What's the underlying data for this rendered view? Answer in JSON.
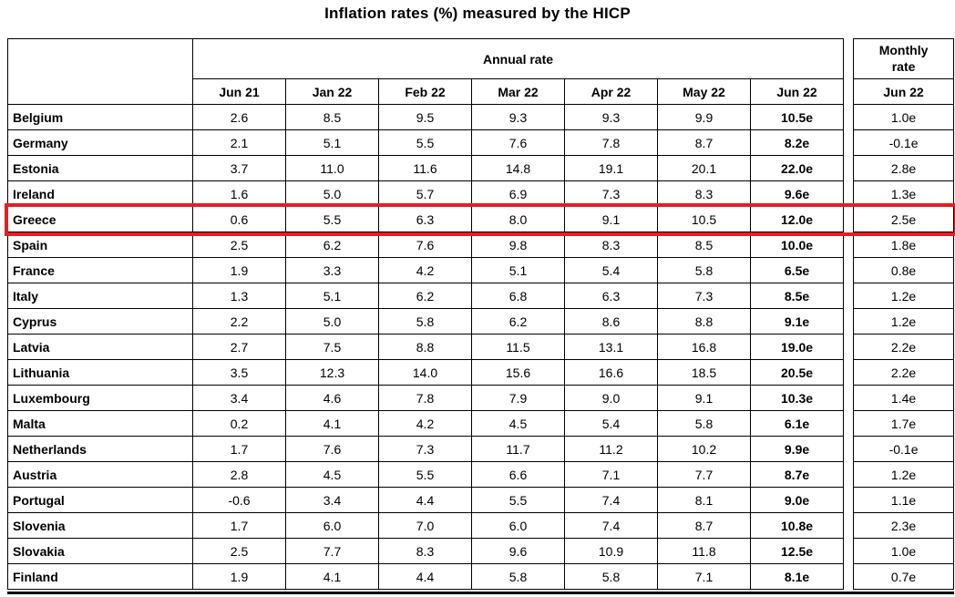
{
  "title": "Inflation rates (%) measured by the HICP",
  "chart_data": {
    "type": "table",
    "title": "Inflation rates (%) measured by the HICP",
    "annual_group_label": "Annual rate",
    "monthly_group_label": "Monthly rate",
    "annual_columns": [
      "Jun 21",
      "Jan 22",
      "Feb 22",
      "Mar 22",
      "Apr 22",
      "May 22",
      "Jun 22"
    ],
    "monthly_column": "Jun 22",
    "highlighted_row": "Greece",
    "highlight_color": "#df2026",
    "rows": [
      {
        "country": "Belgium",
        "annual": [
          "2.6",
          "8.5",
          "9.5",
          "9.3",
          "9.3",
          "9.9",
          "10.5e"
        ],
        "monthly": "1.0e"
      },
      {
        "country": "Germany",
        "annual": [
          "2.1",
          "5.1",
          "5.5",
          "7.6",
          "7.8",
          "8.7",
          "8.2e"
        ],
        "monthly": "-0.1e"
      },
      {
        "country": "Estonia",
        "annual": [
          "3.7",
          "11.0",
          "11.6",
          "14.8",
          "19.1",
          "20.1",
          "22.0e"
        ],
        "monthly": "2.8e"
      },
      {
        "country": "Ireland",
        "annual": [
          "1.6",
          "5.0",
          "5.7",
          "6.9",
          "7.3",
          "8.3",
          "9.6e"
        ],
        "monthly": "1.3e"
      },
      {
        "country": "Greece",
        "annual": [
          "0.6",
          "5.5",
          "6.3",
          "8.0",
          "9.1",
          "10.5",
          "12.0e"
        ],
        "monthly": "2.5e"
      },
      {
        "country": "Spain",
        "annual": [
          "2.5",
          "6.2",
          "7.6",
          "9.8",
          "8.3",
          "8.5",
          "10.0e"
        ],
        "monthly": "1.8e"
      },
      {
        "country": "France",
        "annual": [
          "1.9",
          "3.3",
          "4.2",
          "5.1",
          "5.4",
          "5.8",
          "6.5e"
        ],
        "monthly": "0.8e"
      },
      {
        "country": "Italy",
        "annual": [
          "1.3",
          "5.1",
          "6.2",
          "6.8",
          "6.3",
          "7.3",
          "8.5e"
        ],
        "monthly": "1.2e"
      },
      {
        "country": "Cyprus",
        "annual": [
          "2.2",
          "5.0",
          "5.8",
          "6.2",
          "8.6",
          "8.8",
          "9.1e"
        ],
        "monthly": "1.2e"
      },
      {
        "country": "Latvia",
        "annual": [
          "2.7",
          "7.5",
          "8.8",
          "11.5",
          "13.1",
          "16.8",
          "19.0e"
        ],
        "monthly": "2.2e"
      },
      {
        "country": "Lithuania",
        "annual": [
          "3.5",
          "12.3",
          "14.0",
          "15.6",
          "16.6",
          "18.5",
          "20.5e"
        ],
        "monthly": "2.2e"
      },
      {
        "country": "Luxembourg",
        "annual": [
          "3.4",
          "4.6",
          "7.8",
          "7.9",
          "9.0",
          "9.1",
          "10.3e"
        ],
        "monthly": "1.4e"
      },
      {
        "country": "Malta",
        "annual": [
          "0.2",
          "4.1",
          "4.2",
          "4.5",
          "5.4",
          "5.8",
          "6.1e"
        ],
        "monthly": "1.7e"
      },
      {
        "country": "Netherlands",
        "annual": [
          "1.7",
          "7.6",
          "7.3",
          "11.7",
          "11.2",
          "10.2",
          "9.9e"
        ],
        "monthly": "-0.1e"
      },
      {
        "country": "Austria",
        "annual": [
          "2.8",
          "4.5",
          "5.5",
          "6.6",
          "7.1",
          "7.7",
          "8.7e"
        ],
        "monthly": "1.2e"
      },
      {
        "country": "Portugal",
        "annual": [
          "-0.6",
          "3.4",
          "4.4",
          "5.5",
          "7.4",
          "8.1",
          "9.0e"
        ],
        "monthly": "1.1e"
      },
      {
        "country": "Slovenia",
        "annual": [
          "1.7",
          "6.0",
          "7.0",
          "6.0",
          "7.4",
          "8.7",
          "10.8e"
        ],
        "monthly": "2.3e"
      },
      {
        "country": "Slovakia",
        "annual": [
          "2.5",
          "7.7",
          "8.3",
          "9.6",
          "10.9",
          "11.8",
          "12.5e"
        ],
        "monthly": "1.0e"
      },
      {
        "country": "Finland",
        "annual": [
          "1.9",
          "4.1",
          "4.4",
          "5.8",
          "5.8",
          "7.1",
          "8.1e"
        ],
        "monthly": "0.7e"
      }
    ]
  }
}
